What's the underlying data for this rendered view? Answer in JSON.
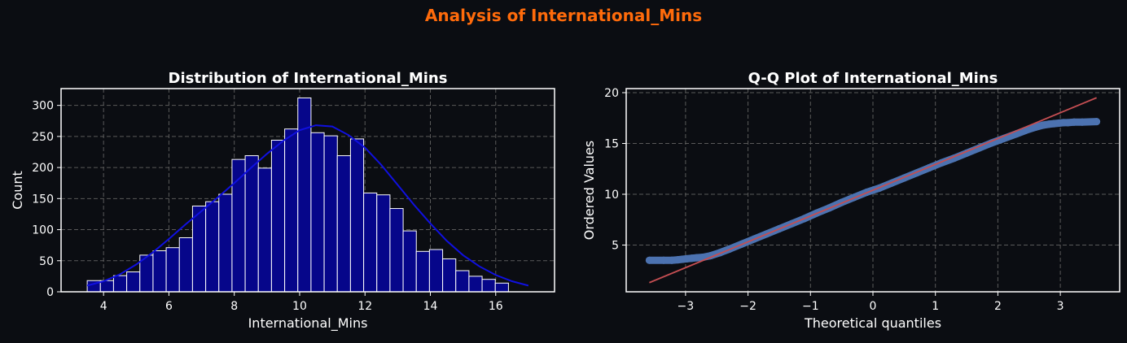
{
  "page": {
    "suptitle": "Analysis of International_Mins",
    "colors": {
      "background": "#0b0d12",
      "text": "#ffffff",
      "suptitle": "#ff6b0b",
      "grid": "#5a5a5a",
      "hist_bar": "#06068a",
      "hist_edge": "#ffffff",
      "kde_line": "#1010e0",
      "qq_points": "#4c72b0",
      "qq_line": "#c44e52"
    }
  },
  "chart_data": [
    {
      "type": "bar",
      "subtype": "histogram",
      "title": "Distribution of International_Mins",
      "xlabel": "International_Mins",
      "ylabel": "Count",
      "xlim": [
        2.7,
        17.8
      ],
      "ylim": [
        0,
        327
      ],
      "xticks": [
        4,
        6,
        8,
        10,
        12,
        14,
        16
      ],
      "yticks": [
        0,
        50,
        100,
        150,
        200,
        250,
        300
      ],
      "grid": true,
      "bin_start": 3.5,
      "bin_width": 0.4028,
      "values": [
        18,
        18,
        26,
        32,
        59,
        66,
        71,
        87,
        138,
        145,
        157,
        213,
        219,
        199,
        244,
        262,
        312,
        256,
        251,
        219,
        246,
        159,
        156,
        134,
        98,
        65,
        68,
        53,
        34,
        25,
        20,
        14
      ],
      "kde": {
        "x": [
          3.5,
          4.0,
          4.5,
          5.0,
          5.5,
          6.0,
          6.5,
          7.0,
          7.5,
          8.0,
          8.5,
          9.0,
          9.5,
          10.0,
          10.5,
          11.0,
          11.5,
          12.0,
          12.5,
          13.0,
          13.5,
          14.0,
          14.5,
          15.0,
          15.5,
          16.0,
          16.5,
          17.0
        ],
        "y": [
          10,
          17,
          28,
          44,
          63,
          85,
          108,
          130,
          152,
          175,
          199,
          222,
          243,
          260,
          268,
          266,
          252,
          232,
          204,
          172,
          140,
          110,
          82,
          59,
          41,
          27,
          17,
          10
        ]
      }
    },
    {
      "type": "scatter",
      "subtype": "qq-plot",
      "title": "Q-Q Plot of International_Mins",
      "xlabel": "Theoretical quantiles",
      "ylabel": "Ordered Values",
      "xlim": [
        -3.95,
        3.95
      ],
      "ylim": [
        0.4,
        20.4
      ],
      "xticks": [
        -3,
        -2,
        -1,
        0,
        1,
        2,
        3
      ],
      "yticks": [
        5,
        10,
        15,
        20
      ],
      "grid": true,
      "fit_line": {
        "x": [
          -3.58,
          3.58
        ],
        "y": [
          1.3,
          19.5
        ]
      },
      "points": {
        "x": [
          -3.58,
          -3.35,
          -3.22,
          -3.12,
          -3.05,
          -2.98,
          -2.9,
          -2.82,
          -2.72,
          -2.6,
          -2.45,
          -2.3,
          -2.1,
          -1.9,
          -1.7,
          -1.5,
          -1.3,
          -1.1,
          -0.9,
          -0.7,
          -0.5,
          -0.3,
          -0.1,
          0.1,
          0.3,
          0.5,
          0.7,
          0.9,
          1.1,
          1.3,
          1.5,
          1.7,
          1.9,
          2.1,
          2.3,
          2.45,
          2.6,
          2.72,
          2.82,
          2.9,
          2.98,
          3.05,
          3.12,
          3.22,
          3.35,
          3.58
        ],
        "y": [
          3.5,
          3.5,
          3.5,
          3.55,
          3.6,
          3.65,
          3.7,
          3.75,
          3.8,
          3.95,
          4.25,
          4.6,
          5.1,
          5.6,
          6.1,
          6.6,
          7.1,
          7.6,
          8.15,
          8.65,
          9.2,
          9.7,
          10.2,
          10.6,
          11.1,
          11.6,
          12.1,
          12.6,
          13.1,
          13.55,
          14.05,
          14.55,
          15.05,
          15.5,
          15.95,
          16.3,
          16.6,
          16.8,
          16.9,
          16.95,
          17.0,
          17.05,
          17.05,
          17.1,
          17.1,
          17.15
        ]
      }
    }
  ]
}
